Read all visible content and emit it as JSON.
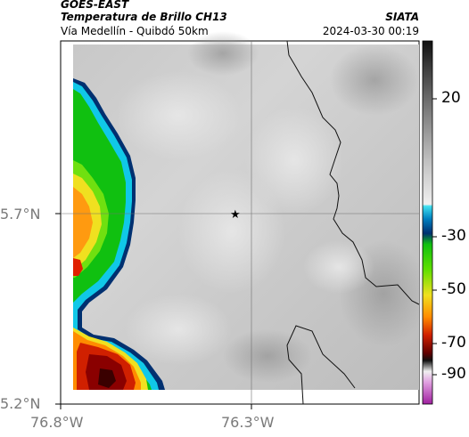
{
  "header": {
    "satellite": "GOES-EAST",
    "product": "Temperatura de Brillo CH13",
    "route": "Vía Medellín - Quibdó 50km",
    "agency": "SIATA",
    "timestamp": "2024-03-30 00:19"
  },
  "axes": {
    "lat_ticks": [
      "5.7°N",
      "5.2°N"
    ],
    "lon_ticks": [
      "76.8°W",
      "76.3°W"
    ]
  },
  "marker": {
    "symbol": "★"
  },
  "colorbar": {
    "labels": [
      "20",
      "-30",
      "-50",
      "-70",
      "-90"
    ]
  },
  "colors": {
    "deep_cloud": "#b00000",
    "orange": "#ff8c00",
    "yellow": "#f0e020",
    "green": "#10c010",
    "cyan": "#10d0f0",
    "blue": "#003070",
    "magenta": "#c040c0",
    "background_gray": "#d0d0d0"
  }
}
